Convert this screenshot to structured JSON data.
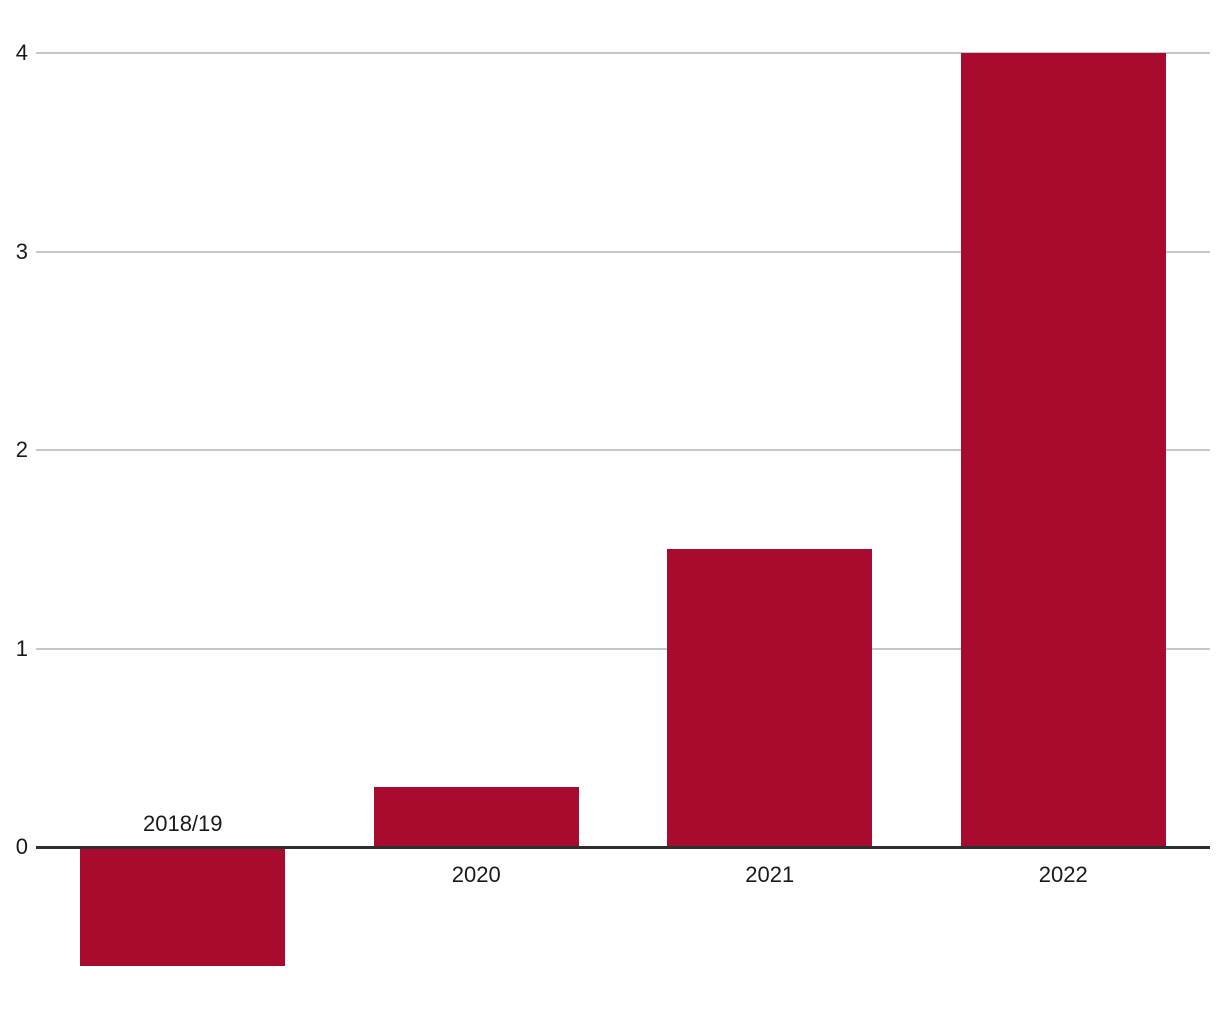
{
  "chart_data": {
    "type": "bar",
    "categories": [
      "2018/19",
      "2020",
      "2021",
      "2022"
    ],
    "values": [
      -0.6,
      0.3,
      1.5,
      4
    ],
    "title": "",
    "xlabel": "",
    "ylabel": "",
    "yticks": [
      0,
      1,
      2,
      3,
      4
    ],
    "ylim": [
      -0.87,
      4.27
    ],
    "grid": true,
    "legend": "none",
    "bar_color": "#A80B2D",
    "gridline_color": "#C7C7C7",
    "axis_line_color": "#2E2E2E",
    "label_color": "#1A1A1A"
  }
}
